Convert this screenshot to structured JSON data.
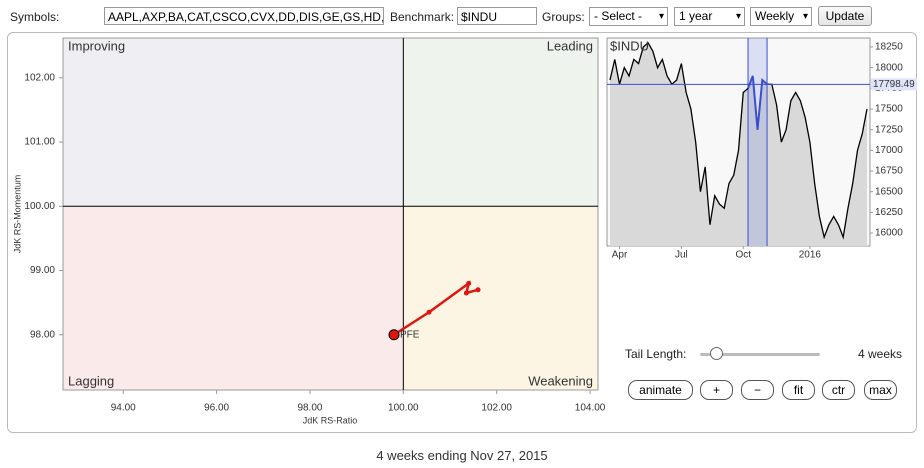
{
  "toolbar": {
    "symbols_label": "Symbols:",
    "symbols_value": "AAPL,AXP,BA,CAT,CSCO,CVX,DD,DIS,GE,GS,HD,I",
    "benchmark_label": "Benchmark:",
    "benchmark_value": "$INDU",
    "groups_label": "Groups:",
    "groups_value": "- Select -",
    "period_value": "1 year",
    "interval_value": "Weekly",
    "update_button": "Update"
  },
  "rrg_chart": {
    "type": "scatter",
    "x_label": "JdK RS-Ratio",
    "y_label": "JdK RS-Momentum",
    "quadrants": {
      "top_left": "Improving",
      "top_right": "Leading",
      "bottom_left": "Lagging",
      "bottom_right": "Weakening"
    },
    "xlim": [
      92.71,
      104.17
    ],
    "ylim": [
      97.14,
      102.62
    ],
    "xticks": [
      {
        "value": 94,
        "label": "94.00"
      },
      {
        "value": 96,
        "label": "96.00"
      },
      {
        "value": 98,
        "label": "98.00"
      },
      {
        "value": 100,
        "label": "100.00"
      },
      {
        "value": 102,
        "label": "102.00"
      },
      {
        "value": 104,
        "label": "104.00"
      }
    ],
    "yticks": [
      {
        "value": 98,
        "label": "98.00"
      },
      {
        "value": 99,
        "label": "99.00"
      },
      {
        "value": 100,
        "label": "100.00"
      },
      {
        "value": 101,
        "label": "101.00"
      },
      {
        "value": 102,
        "label": "102.00"
      }
    ],
    "series": [
      {
        "name": "PFE",
        "color": "#e0150e",
        "x": [
          101.6,
          101.35,
          101.4,
          100.55,
          99.8
        ],
        "y": [
          98.7,
          98.65,
          98.8,
          98.35,
          98.0
        ]
      }
    ]
  },
  "benchmark_chart": {
    "type": "line",
    "title": "$INDU",
    "color": "#000000",
    "categories": [
      null,
      null,
      "Apr",
      null,
      null,
      null,
      null,
      null,
      null,
      null,
      null,
      null,
      null,
      null,
      null,
      "Jul",
      null,
      null,
      null,
      null,
      null,
      null,
      null,
      null,
      null,
      null,
      null,
      null,
      "Oct",
      null,
      null,
      null,
      null,
      null,
      null,
      null,
      null,
      null,
      null,
      null,
      null,
      null,
      "2016",
      null,
      null,
      null,
      null,
      null,
      null,
      null,
      null,
      null,
      null,
      null,
      null
    ],
    "values": [
      17850,
      18100,
      17800,
      18000,
      17900,
      18100,
      18050,
      18250,
      18300,
      18200,
      18000,
      18100,
      17900,
      17800,
      17850,
      18050,
      17700,
      17500,
      17100,
      16500,
      16800,
      16100,
      16450,
      16350,
      16300,
      16600,
      16700,
      17000,
      17700,
      17750,
      17900,
      17250,
      17850,
      17800,
      17800,
      17550,
      17100,
      17250,
      17600,
      17700,
      17600,
      17400,
      17100,
      16600,
      16200,
      15950,
      16100,
      16200,
      16100,
      15950,
      16300,
      16600,
      17000,
      17200,
      17500
    ],
    "ylim": [
      15843,
      18359
    ],
    "yticks": [
      16000,
      16250,
      16500,
      16750,
      17000,
      17250,
      17500,
      17750,
      18000,
      18250
    ],
    "current_value": 17798.49
  },
  "controls": {
    "tail_length_label": "Tail Length:",
    "tail_length_value": "4 weeks",
    "buttons": [
      "animate",
      "+",
      "−",
      "fit",
      "ctr",
      "max"
    ]
  },
  "footer": "4 weeks ending Nov 27, 2015"
}
